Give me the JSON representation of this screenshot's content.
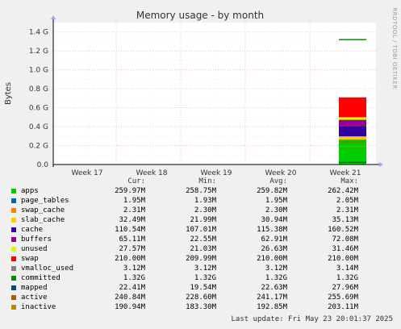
{
  "chart_data": {
    "type": "area",
    "title": "Memory usage - by month",
    "ylabel": "Bytes",
    "side_label": "RRDTOOL / TOBI OETIKER",
    "ylim": [
      0,
      1.5
    ],
    "y_ticks": [
      "0.0",
      "0.2 G",
      "0.4 G",
      "0.6 G",
      "0.8 G",
      "1.0 G",
      "1.2 G",
      "1.4 G"
    ],
    "y_tick_values": [
      0,
      0.2,
      0.4,
      0.6,
      0.8,
      1.0,
      1.2,
      1.4
    ],
    "x_ticks": [
      "Week 17",
      "Week 18",
      "Week 19",
      "Week 20",
      "Week 21"
    ],
    "data_window_x": [
      0.885,
      1.0
    ],
    "stack_order": [
      "apps",
      "page_tables",
      "swap_cache",
      "slab_cache",
      "cache",
      "buffers",
      "unused",
      "swap"
    ],
    "line_series": [
      "committed",
      "mapped",
      "active",
      "inactive",
      "vmalloc_used"
    ],
    "series": [
      {
        "name": "apps",
        "color": "#00cc00",
        "cur": "259.97M",
        "min": "258.75M",
        "avg": "259.82M",
        "max": "262.42M",
        "value_g": 0.26
      },
      {
        "name": "page_tables",
        "color": "#0066b3",
        "cur": "1.95M",
        "min": "1.93M",
        "avg": "1.95M",
        "max": "2.05M",
        "value_g": 0.00195
      },
      {
        "name": "swap_cache",
        "color": "#ff8000",
        "cur": "2.31M",
        "min": "2.30M",
        "avg": "2.30M",
        "max": "2.31M",
        "value_g": 0.0023
      },
      {
        "name": "slab_cache",
        "color": "#ffcc00",
        "cur": "32.49M",
        "min": "21.99M",
        "avg": "30.94M",
        "max": "35.13M",
        "value_g": 0.0325
      },
      {
        "name": "cache",
        "color": "#330099",
        "cur": "110.54M",
        "min": "107.01M",
        "avg": "115.38M",
        "max": "160.52M",
        "value_g": 0.1105
      },
      {
        "name": "buffers",
        "color": "#990099",
        "cur": "65.11M",
        "min": "22.55M",
        "avg": "62.91M",
        "max": "72.08M",
        "value_g": 0.0651
      },
      {
        "name": "unused",
        "color": "#ccff00",
        "cur": "27.57M",
        "min": "21.03M",
        "avg": "26.63M",
        "max": "31.46M",
        "value_g": 0.0276
      },
      {
        "name": "swap",
        "color": "#ff0000",
        "cur": "210.00M",
        "min": "209.99M",
        "avg": "210.00M",
        "max": "210.00M",
        "value_g": 0.21
      },
      {
        "name": "vmalloc_used",
        "color": "#808080",
        "cur": "3.12M",
        "min": "3.12M",
        "avg": "3.12M",
        "max": "3.14M",
        "value_g": 0.0031
      },
      {
        "name": "committed",
        "color": "#008f00",
        "cur": "1.32G",
        "min": "1.32G",
        "avg": "1.32G",
        "max": "1.32G",
        "value_g": 1.32
      },
      {
        "name": "mapped",
        "color": "#00487d",
        "cur": "22.41M",
        "min": "19.54M",
        "avg": "22.63M",
        "max": "27.96M",
        "value_g": 0.0224
      },
      {
        "name": "active",
        "color": "#b35a00",
        "cur": "240.84M",
        "min": "228.60M",
        "avg": "241.17M",
        "max": "255.69M",
        "value_g": 0.2408
      },
      {
        "name": "inactive",
        "color": "#b38f00",
        "cur": "190.94M",
        "min": "183.30M",
        "avg": "192.85M",
        "max": "203.11M",
        "value_g": 0.1909
      }
    ]
  },
  "legend_headers": {
    "cur": "Cur:",
    "min": "Min:",
    "avg": "Avg:",
    "max": "Max:"
  },
  "last_update": "Last update: Fri May 23 20:01:37 2025"
}
